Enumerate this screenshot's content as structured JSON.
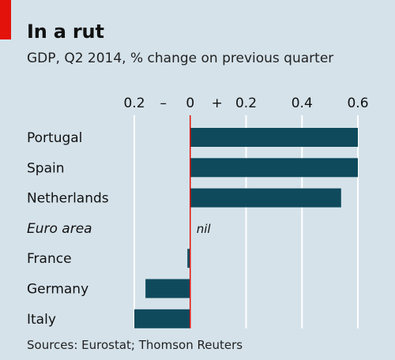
{
  "chart_data": {
    "type": "bar",
    "orientation": "horizontal",
    "title": "In a rut",
    "subtitle": "GDP, Q2 2014, % change on previous quarter",
    "source": "Sources: Eurostat; Thomson Reuters",
    "categories": [
      "Portugal",
      "Spain",
      "Netherlands",
      "Euro area",
      "France",
      "Germany",
      "Italy"
    ],
    "values": [
      0.6,
      0.6,
      0.54,
      0.0,
      -0.01,
      -0.16,
      -0.2
    ],
    "italic_categories": [
      "Euro area"
    ],
    "data_labels": [
      "",
      "",
      "",
      "nil",
      "",
      "",
      ""
    ],
    "xlim": [
      -0.2,
      0.6
    ],
    "ticks": [
      -0.2,
      0,
      0.2,
      0.4,
      0.6
    ],
    "tick_labels": [
      "0.2",
      "0",
      "0.2",
      "0.4",
      "0.6"
    ],
    "sign_labels": [
      "–",
      "+"
    ],
    "grid": true,
    "colors": {
      "bar": "#0f4a5c",
      "zero_line": "#e3120b",
      "grid": "#ffffff",
      "background": "#d5e2ea",
      "accent": "#e3120b"
    }
  }
}
